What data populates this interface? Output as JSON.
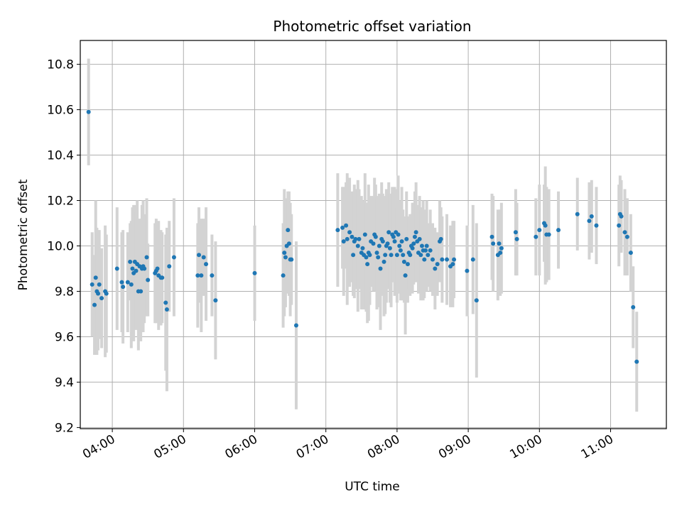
{
  "chart_data": {
    "type": "scatter",
    "title": "Photometric offset variation",
    "xlabel": "UTC time",
    "ylabel": "Photometric offset",
    "x_unit": "UTC HH:MM",
    "xlim": [
      "03:33",
      "11:47"
    ],
    "ylim": [
      9.195,
      10.905
    ],
    "x_ticks": [
      "04:00",
      "05:00",
      "06:00",
      "07:00",
      "08:00",
      "09:00",
      "10:00",
      "11:00"
    ],
    "y_ticks": [
      9.2,
      9.4,
      9.6,
      9.8,
      10.0,
      10.2,
      10.4,
      10.6,
      10.8
    ],
    "grid": true,
    "colors": {
      "points": "#1f77b4",
      "errorbars": "#d3d3d3",
      "grid": "#b0b0b0"
    },
    "series": [
      {
        "points": [
          {
            "x": "03:40",
            "y": 10.59,
            "err": 0.235
          },
          {
            "x": "03:43",
            "y": 9.83,
            "err": 0.23
          },
          {
            "x": "03:45",
            "y": 9.74,
            "err": 0.22
          },
          {
            "x": "03:46",
            "y": 9.86,
            "err": 0.34
          },
          {
            "x": "03:47",
            "y": 9.8,
            "err": 0.28
          },
          {
            "x": "03:48",
            "y": 9.79,
            "err": 0.25
          },
          {
            "x": "03:49",
            "y": 9.83,
            "err": 0.24
          },
          {
            "x": "03:51",
            "y": 9.77,
            "err": 0.22
          },
          {
            "x": "03:54",
            "y": 9.8,
            "err": 0.29
          },
          {
            "x": "03:55",
            "y": 9.79,
            "err": 0.26
          },
          {
            "x": "04:04",
            "y": 9.9,
            "err": 0.27
          },
          {
            "x": "04:08",
            "y": 9.84,
            "err": 0.22
          },
          {
            "x": "04:09",
            "y": 9.82,
            "err": 0.25
          },
          {
            "x": "04:13",
            "y": 9.84,
            "err": 0.22
          },
          {
            "x": "04:15",
            "y": 9.93,
            "err": 0.17
          },
          {
            "x": "04:16",
            "y": 9.83,
            "err": 0.28
          },
          {
            "x": "04:17",
            "y": 9.9,
            "err": 0.27
          },
          {
            "x": "04:18",
            "y": 9.88,
            "err": 0.3
          },
          {
            "x": "04:19",
            "y": 9.93,
            "err": 0.25
          },
          {
            "x": "04:20",
            "y": 9.89,
            "err": 0.26
          },
          {
            "x": "04:21",
            "y": 9.92,
            "err": 0.28
          },
          {
            "x": "04:22",
            "y": 9.8,
            "err": 0.26
          },
          {
            "x": "04:23",
            "y": 9.91,
            "err": 0.21
          },
          {
            "x": "04:24",
            "y": 9.8,
            "err": 0.22
          },
          {
            "x": "04:25",
            "y": 9.9,
            "err": 0.28
          },
          {
            "x": "04:26",
            "y": 9.91,
            "err": 0.29
          },
          {
            "x": "04:27",
            "y": 9.9,
            "err": 0.24
          },
          {
            "x": "04:29",
            "y": 9.95,
            "err": 0.26
          },
          {
            "x": "04:30",
            "y": 9.85,
            "err": 0.16
          },
          {
            "x": "04:36",
            "y": 9.88,
            "err": 0.22
          },
          {
            "x": "04:37",
            "y": 9.89,
            "err": 0.23
          },
          {
            "x": "04:38",
            "y": 9.9,
            "err": 0.2
          },
          {
            "x": "04:39",
            "y": 9.87,
            "err": 0.24
          },
          {
            "x": "04:41",
            "y": 9.86,
            "err": 0.21
          },
          {
            "x": "04:42",
            "y": 9.86,
            "err": 0.2
          },
          {
            "x": "04:45",
            "y": 9.75,
            "err": 0.3
          },
          {
            "x": "04:46",
            "y": 9.72,
            "err": 0.36
          },
          {
            "x": "04:48",
            "y": 9.91,
            "err": 0.2
          },
          {
            "x": "04:52",
            "y": 9.95,
            "err": 0.26
          },
          {
            "x": "05:12",
            "y": 9.87,
            "err": 0.23
          },
          {
            "x": "05:13",
            "y": 9.96,
            "err": 0.21
          },
          {
            "x": "05:15",
            "y": 9.87,
            "err": 0.25
          },
          {
            "x": "05:17",
            "y": 9.95,
            "err": 0.17
          },
          {
            "x": "05:19",
            "y": 9.92,
            "err": 0.25
          },
          {
            "x": "05:24",
            "y": 9.87,
            "err": 0.18
          },
          {
            "x": "05:27",
            "y": 9.76,
            "err": 0.26
          },
          {
            "x": "06:00",
            "y": 9.88,
            "err": 0.21
          },
          {
            "x": "06:24",
            "y": 9.87,
            "err": 0.23
          },
          {
            "x": "06:25",
            "y": 9.97,
            "err": 0.28
          },
          {
            "x": "06:26",
            "y": 9.95,
            "err": 0.22
          },
          {
            "x": "06:27",
            "y": 10.0,
            "err": 0.21
          },
          {
            "x": "06:28",
            "y": 10.07,
            "err": 0.17
          },
          {
            "x": "06:29",
            "y": 10.01,
            "err": 0.23
          },
          {
            "x": "06:30",
            "y": 9.94,
            "err": 0.25
          },
          {
            "x": "06:31",
            "y": 9.94,
            "err": 0.2
          },
          {
            "x": "06:35",
            "y": 9.65,
            "err": 0.37
          },
          {
            "x": "07:10",
            "y": 10.07,
            "err": 0.25
          },
          {
            "x": "07:14",
            "y": 10.08,
            "err": 0.18
          },
          {
            "x": "07:15",
            "y": 10.02,
            "err": 0.24
          },
          {
            "x": "07:17",
            "y": 10.09,
            "err": 0.19
          },
          {
            "x": "07:18",
            "y": 10.03,
            "err": 0.29
          },
          {
            "x": "07:20",
            "y": 10.06,
            "err": 0.24
          },
          {
            "x": "07:22",
            "y": 10.04,
            "err": 0.2
          },
          {
            "x": "07:23",
            "y": 9.96,
            "err": 0.18
          },
          {
            "x": "07:24",
            "y": 10.02,
            "err": 0.25
          },
          {
            "x": "07:25",
            "y": 10.03,
            "err": 0.22
          },
          {
            "x": "07:27",
            "y": 10.0,
            "err": 0.29
          },
          {
            "x": "07:28",
            "y": 10.03,
            "err": 0.22
          },
          {
            "x": "07:30",
            "y": 9.97,
            "err": 0.25
          },
          {
            "x": "07:31",
            "y": 9.99,
            "err": 0.2
          },
          {
            "x": "07:32",
            "y": 9.96,
            "err": 0.24
          },
          {
            "x": "07:33",
            "y": 10.05,
            "err": 0.27
          },
          {
            "x": "07:34",
            "y": 9.95,
            "err": 0.24
          },
          {
            "x": "07:35",
            "y": 9.92,
            "err": 0.26
          },
          {
            "x": "07:36",
            "y": 9.97,
            "err": 0.3
          },
          {
            "x": "07:37",
            "y": 9.96,
            "err": 0.22
          },
          {
            "x": "07:38",
            "y": 10.02,
            "err": 0.2
          },
          {
            "x": "07:40",
            "y": 10.01,
            "err": 0.21
          },
          {
            "x": "07:41",
            "y": 10.05,
            "err": 0.25
          },
          {
            "x": "07:42",
            "y": 10.04,
            "err": 0.23
          },
          {
            "x": "07:43",
            "y": 9.97,
            "err": 0.25
          },
          {
            "x": "07:44",
            "y": 9.95,
            "err": 0.22
          },
          {
            "x": "07:45",
            "y": 10.0,
            "err": 0.23
          },
          {
            "x": "07:46",
            "y": 9.9,
            "err": 0.27
          },
          {
            "x": "07:47",
            "y": 10.03,
            "err": 0.25
          },
          {
            "x": "07:48",
            "y": 10.02,
            "err": 0.21
          },
          {
            "x": "07:49",
            "y": 9.93,
            "err": 0.24
          },
          {
            "x": "07:50",
            "y": 9.96,
            "err": 0.26
          },
          {
            "x": "07:51",
            "y": 10.0,
            "err": 0.25
          },
          {
            "x": "07:52",
            "y": 10.01,
            "err": 0.2
          },
          {
            "x": "07:53",
            "y": 10.06,
            "err": 0.22
          },
          {
            "x": "07:54",
            "y": 9.99,
            "err": 0.24
          },
          {
            "x": "07:55",
            "y": 9.96,
            "err": 0.23
          },
          {
            "x": "07:56",
            "y": 10.05,
            "err": 0.21
          },
          {
            "x": "07:57",
            "y": 10.04,
            "err": 0.2
          },
          {
            "x": "07:58",
            "y": 10.02,
            "err": 0.24
          },
          {
            "x": "07:59",
            "y": 10.06,
            "err": 0.19
          },
          {
            "x": "08:00",
            "y": 9.96,
            "err": 0.21
          },
          {
            "x": "08:01",
            "y": 10.05,
            "err": 0.26
          },
          {
            "x": "08:02",
            "y": 10.0,
            "err": 0.19
          },
          {
            "x": "08:03",
            "y": 9.98,
            "err": 0.22
          },
          {
            "x": "08:04",
            "y": 10.02,
            "err": 0.24
          },
          {
            "x": "08:05",
            "y": 9.96,
            "err": 0.2
          },
          {
            "x": "08:06",
            "y": 9.93,
            "err": 0.18
          },
          {
            "x": "08:07",
            "y": 9.87,
            "err": 0.26
          },
          {
            "x": "08:08",
            "y": 10.03,
            "err": 0.21
          },
          {
            "x": "08:09",
            "y": 9.92,
            "err": 0.17
          },
          {
            "x": "08:10",
            "y": 9.97,
            "err": 0.16
          },
          {
            "x": "08:11",
            "y": 9.96,
            "err": 0.18
          },
          {
            "x": "08:12",
            "y": 10.0,
            "err": 0.14
          },
          {
            "x": "08:13",
            "y": 9.99,
            "err": 0.2
          },
          {
            "x": "08:14",
            "y": 10.01,
            "err": 0.18
          },
          {
            "x": "08:15",
            "y": 10.04,
            "err": 0.2
          },
          {
            "x": "08:16",
            "y": 10.06,
            "err": 0.22
          },
          {
            "x": "08:17",
            "y": 10.02,
            "err": 0.16
          },
          {
            "x": "08:18",
            "y": 9.97,
            "err": 0.18
          },
          {
            "x": "08:19",
            "y": 10.03,
            "err": 0.19
          },
          {
            "x": "08:20",
            "y": 9.96,
            "err": 0.2
          },
          {
            "x": "08:21",
            "y": 10.0,
            "err": 0.17
          },
          {
            "x": "08:22",
            "y": 9.98,
            "err": 0.22
          },
          {
            "x": "08:23",
            "y": 9.94,
            "err": 0.17
          },
          {
            "x": "08:24",
            "y": 9.98,
            "err": 0.18
          },
          {
            "x": "08:25",
            "y": 10.0,
            "err": 0.2
          },
          {
            "x": "08:26",
            "y": 9.96,
            "err": 0.14
          },
          {
            "x": "08:28",
            "y": 9.98,
            "err": 0.18
          },
          {
            "x": "08:30",
            "y": 9.94,
            "err": 0.16
          },
          {
            "x": "08:32",
            "y": 9.9,
            "err": 0.18
          },
          {
            "x": "08:34",
            "y": 9.92,
            "err": 0.14
          },
          {
            "x": "08:36",
            "y": 10.02,
            "err": 0.18
          },
          {
            "x": "08:37",
            "y": 10.03,
            "err": 0.14
          },
          {
            "x": "08:38",
            "y": 9.94,
            "err": 0.19
          },
          {
            "x": "08:42",
            "y": 9.94,
            "err": 0.2
          },
          {
            "x": "08:45",
            "y": 9.91,
            "err": 0.18
          },
          {
            "x": "08:47",
            "y": 9.92,
            "err": 0.19
          },
          {
            "x": "08:48",
            "y": 9.94,
            "err": 0.17
          },
          {
            "x": "08:59",
            "y": 9.89,
            "err": 0.2
          },
          {
            "x": "09:04",
            "y": 9.94,
            "err": 0.24
          },
          {
            "x": "09:07",
            "y": 9.76,
            "err": 0.34
          },
          {
            "x": "09:20",
            "y": 10.04,
            "err": 0.19
          },
          {
            "x": "09:21",
            "y": 10.01,
            "err": 0.21
          },
          {
            "x": "09:25",
            "y": 9.96,
            "err": 0.2
          },
          {
            "x": "09:26",
            "y": 10.01,
            "err": 0.15
          },
          {
            "x": "09:27",
            "y": 9.97,
            "err": 0.19
          },
          {
            "x": "09:28",
            "y": 9.99,
            "err": 0.2
          },
          {
            "x": "09:40",
            "y": 10.06,
            "err": 0.19
          },
          {
            "x": "09:41",
            "y": 10.03,
            "err": 0.16
          },
          {
            "x": "09:57",
            "y": 10.04,
            "err": 0.17
          },
          {
            "x": "10:00",
            "y": 10.07,
            "err": 0.2
          },
          {
            "x": "10:04",
            "y": 10.1,
            "err": 0.17
          },
          {
            "x": "10:05",
            "y": 10.09,
            "err": 0.26
          },
          {
            "x": "10:06",
            "y": 10.05,
            "err": 0.21
          },
          {
            "x": "10:08",
            "y": 10.05,
            "err": 0.2
          },
          {
            "x": "10:16",
            "y": 10.07,
            "err": 0.17
          },
          {
            "x": "10:32",
            "y": 10.14,
            "err": 0.16
          },
          {
            "x": "10:42",
            "y": 10.11,
            "err": 0.17
          },
          {
            "x": "10:44",
            "y": 10.13,
            "err": 0.16
          },
          {
            "x": "10:48",
            "y": 10.09,
            "err": 0.17
          },
          {
            "x": "11:07",
            "y": 10.09,
            "err": 0.18
          },
          {
            "x": "11:08",
            "y": 10.14,
            "err": 0.17
          },
          {
            "x": "11:09",
            "y": 10.13,
            "err": 0.16
          },
          {
            "x": "11:12",
            "y": 10.06,
            "err": 0.19
          },
          {
            "x": "11:14",
            "y": 10.04,
            "err": 0.17
          },
          {
            "x": "11:17",
            "y": 9.97,
            "err": 0.17
          },
          {
            "x": "11:19",
            "y": 9.73,
            "err": 0.18
          },
          {
            "x": "11:22",
            "y": 9.49,
            "err": 0.22
          }
        ]
      }
    ]
  }
}
